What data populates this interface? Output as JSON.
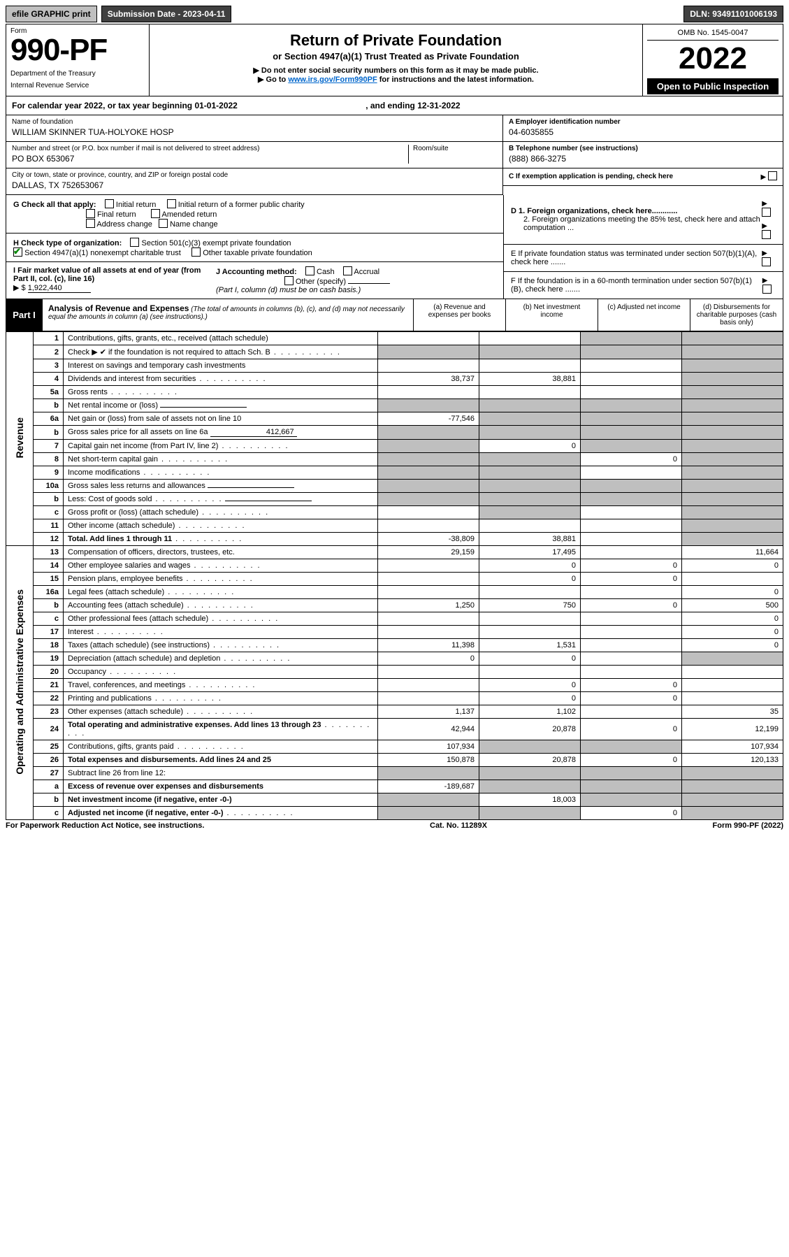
{
  "topbar": {
    "efile": "efile GRAPHIC print",
    "submission_label": "Submission Date - 2023-04-11",
    "dln": "DLN: 93491101006193"
  },
  "header": {
    "form_word": "Form",
    "form_number": "990-PF",
    "dept": "Department of the Treasury",
    "irs": "Internal Revenue Service",
    "title": "Return of Private Foundation",
    "subtitle": "or Section 4947(a)(1) Trust Treated as Private Foundation",
    "instr1": "▶ Do not enter social security numbers on this form as it may be made public.",
    "instr2_prefix": "▶ Go to ",
    "instr2_link": "www.irs.gov/Form990PF",
    "instr2_suffix": " for instructions and the latest information.",
    "omb": "OMB No. 1545-0047",
    "year": "2022",
    "open": "Open to Public Inspection"
  },
  "calendar": {
    "prefix": "For calendar year 2022, or tax year beginning ",
    "start": "01-01-2022",
    "mid": ", and ending ",
    "end": "12-31-2022"
  },
  "identity": {
    "name_label": "Name of foundation",
    "name_value": "WILLIAM SKINNER TUA-HOLYOKE HOSP",
    "addr_label": "Number and street (or P.O. box number if mail is not delivered to street address)",
    "addr_value": "PO BOX 653067",
    "room_label": "Room/suite",
    "city_label": "City or town, state or province, country, and ZIP or foreign postal code",
    "city_value": "DALLAS, TX  752653067",
    "ein_label": "A Employer identification number",
    "ein_value": "04-6035855",
    "phone_label": "B Telephone number (see instructions)",
    "phone_value": "(888) 866-3275",
    "c_label": "C If exemption application is pending, check here"
  },
  "checks": {
    "g_label": "G Check all that apply:",
    "g_opts": [
      "Initial return",
      "Initial return of a former public charity",
      "Final return",
      "Amended return",
      "Address change",
      "Name change"
    ],
    "h_label": "H Check type of organization:",
    "h_a": "Section 501(c)(3) exempt private foundation",
    "h_b": "Section 4947(a)(1) nonexempt charitable trust",
    "h_c": "Other taxable private foundation",
    "i_label": "I Fair market value of all assets at end of year (from Part II, col. (c), line 16)",
    "i_prefix": "▶ $",
    "i_value": "1,922,440",
    "j_label": "J Accounting method:",
    "j_a": "Cash",
    "j_b": "Accrual",
    "j_c": "Other (specify)",
    "j_note": "(Part I, column (d) must be on cash basis.)",
    "d1": "D 1. Foreign organizations, check here............",
    "d2": "2. Foreign organizations meeting the 85% test, check here and attach computation ...",
    "e": "E  If private foundation status was terminated under section 507(b)(1)(A), check here .......",
    "f": "F  If the foundation is in a 60-month termination under section 507(b)(1)(B), check here .......",
    "arrow": "▶"
  },
  "part1": {
    "tag": "Part I",
    "title": "Analysis of Revenue and Expenses",
    "title_note": "(The total of amounts in columns (b), (c), and (d) may not necessarily equal the amounts in column (a) (see instructions).)",
    "col_a": "(a)  Revenue and expenses per books",
    "col_b": "(b)  Net investment income",
    "col_c": "(c)  Adjusted net income",
    "col_d": "(d)  Disbursements for charitable purposes (cash basis only)",
    "section_rev": "Revenue",
    "section_exp": "Operating and Administrative Expenses"
  },
  "rows": [
    {
      "n": "1",
      "label": "Contributions, gifts, grants, etc., received (attach schedule)",
      "a": "",
      "b": "",
      "c": "shade",
      "d": "shade"
    },
    {
      "n": "2",
      "label": "Check ▶ ✔ if the foundation is not required to attach Sch. B",
      "leader": true,
      "noval": true
    },
    {
      "n": "3",
      "label": "Interest on savings and temporary cash investments",
      "a": "",
      "b": "",
      "c": "",
      "d": "shade"
    },
    {
      "n": "4",
      "label": "Dividends and interest from securities",
      "leader": true,
      "a": "38,737",
      "b": "38,881",
      "c": "",
      "d": "shade"
    },
    {
      "n": "5a",
      "label": "Gross rents",
      "leader": true,
      "a": "",
      "b": "",
      "c": "",
      "d": "shade"
    },
    {
      "n": "b",
      "label": "Net rental income or (loss)",
      "inline": "",
      "a": "shade",
      "b": "shade",
      "c": "shade",
      "d": "shade"
    },
    {
      "n": "6a",
      "label": "Net gain or (loss) from sale of assets not on line 10",
      "a": "-77,546",
      "b": "shade",
      "c": "shade",
      "d": "shade"
    },
    {
      "n": "b",
      "label": "Gross sales price for all assets on line 6a",
      "inline": "412,667",
      "a": "shade",
      "b": "shade",
      "c": "shade",
      "d": "shade"
    },
    {
      "n": "7",
      "label": "Capital gain net income (from Part IV, line 2)",
      "leader": true,
      "a": "shade",
      "b": "0",
      "c": "shade",
      "d": "shade"
    },
    {
      "n": "8",
      "label": "Net short-term capital gain",
      "leader": true,
      "a": "shade",
      "b": "shade",
      "c": "0",
      "d": "shade"
    },
    {
      "n": "9",
      "label": "Income modifications",
      "leader": true,
      "a": "shade",
      "b": "shade",
      "c": "",
      "d": "shade"
    },
    {
      "n": "10a",
      "label": "Gross sales less returns and allowances",
      "inline": "",
      "a": "shade",
      "b": "shade",
      "c": "shade",
      "d": "shade"
    },
    {
      "n": "b",
      "label": "Less: Cost of goods sold",
      "leader": true,
      "inline": "",
      "a": "shade",
      "b": "shade",
      "c": "shade",
      "d": "shade"
    },
    {
      "n": "c",
      "label": "Gross profit or (loss) (attach schedule)",
      "leader": true,
      "a": "",
      "b": "shade",
      "c": "",
      "d": "shade"
    },
    {
      "n": "11",
      "label": "Other income (attach schedule)",
      "leader": true,
      "a": "",
      "b": "",
      "c": "",
      "d": "shade"
    },
    {
      "n": "12",
      "label": "Total. Add lines 1 through 11",
      "leader": true,
      "bold": true,
      "a": "-38,809",
      "b": "38,881",
      "c": "",
      "d": "shade"
    }
  ],
  "exp_rows": [
    {
      "n": "13",
      "label": "Compensation of officers, directors, trustees, etc.",
      "a": "29,159",
      "b": "17,495",
      "c": "",
      "d": "11,664"
    },
    {
      "n": "14",
      "label": "Other employee salaries and wages",
      "leader": true,
      "a": "",
      "b": "0",
      "c": "0",
      "d": "0"
    },
    {
      "n": "15",
      "label": "Pension plans, employee benefits",
      "leader": true,
      "a": "",
      "b": "0",
      "c": "0",
      "d": ""
    },
    {
      "n": "16a",
      "label": "Legal fees (attach schedule)",
      "leader": true,
      "a": "",
      "b": "",
      "c": "",
      "d": "0"
    },
    {
      "n": "b",
      "label": "Accounting fees (attach schedule)",
      "leader": true,
      "a": "1,250",
      "b": "750",
      "c": "0",
      "d": "500"
    },
    {
      "n": "c",
      "label": "Other professional fees (attach schedule)",
      "leader": true,
      "a": "",
      "b": "",
      "c": "",
      "d": "0"
    },
    {
      "n": "17",
      "label": "Interest",
      "leader": true,
      "a": "",
      "b": "",
      "c": "",
      "d": "0"
    },
    {
      "n": "18",
      "label": "Taxes (attach schedule) (see instructions)",
      "leader": true,
      "a": "11,398",
      "b": "1,531",
      "c": "",
      "d": "0"
    },
    {
      "n": "19",
      "label": "Depreciation (attach schedule) and depletion",
      "leader": true,
      "a": "0",
      "b": "0",
      "c": "",
      "d": "shade"
    },
    {
      "n": "20",
      "label": "Occupancy",
      "leader": true,
      "a": "",
      "b": "",
      "c": "",
      "d": ""
    },
    {
      "n": "21",
      "label": "Travel, conferences, and meetings",
      "leader": true,
      "a": "",
      "b": "0",
      "c": "0",
      "d": ""
    },
    {
      "n": "22",
      "label": "Printing and publications",
      "leader": true,
      "a": "",
      "b": "0",
      "c": "0",
      "d": ""
    },
    {
      "n": "23",
      "label": "Other expenses (attach schedule)",
      "leader": true,
      "a": "1,137",
      "b": "1,102",
      "c": "",
      "d": "35"
    },
    {
      "n": "24",
      "label": "Total operating and administrative expenses. Add lines 13 through 23",
      "leader": true,
      "bold": true,
      "a": "42,944",
      "b": "20,878",
      "c": "0",
      "d": "12,199"
    },
    {
      "n": "25",
      "label": "Contributions, gifts, grants paid",
      "leader": true,
      "a": "107,934",
      "b": "shade",
      "c": "shade",
      "d": "107,934"
    },
    {
      "n": "26",
      "label": "Total expenses and disbursements. Add lines 24 and 25",
      "bold": true,
      "a": "150,878",
      "b": "20,878",
      "c": "0",
      "d": "120,133"
    },
    {
      "n": "27",
      "label": "Subtract line 26 from line 12:",
      "a": "shade",
      "b": "shade",
      "c": "shade",
      "d": "shade"
    },
    {
      "n": "a",
      "label": "Excess of revenue over expenses and disbursements",
      "bold": true,
      "a": "-189,687",
      "b": "shade",
      "c": "shade",
      "d": "shade"
    },
    {
      "n": "b",
      "label": "Net investment income (if negative, enter -0-)",
      "bold": true,
      "a": "shade",
      "b": "18,003",
      "c": "shade",
      "d": "shade"
    },
    {
      "n": "c",
      "label": "Adjusted net income (if negative, enter -0-)",
      "leader": true,
      "bold": true,
      "a": "shade",
      "b": "shade",
      "c": "0",
      "d": "shade"
    }
  ],
  "footer": {
    "left": "For Paperwork Reduction Act Notice, see instructions.",
    "mid": "Cat. No. 11289X",
    "right": "Form 990-PF (2022)"
  },
  "colors": {
    "shade": "#bfbfbf",
    "black": "#000000",
    "link": "#0066cc",
    "check": "#0a8a0a"
  }
}
